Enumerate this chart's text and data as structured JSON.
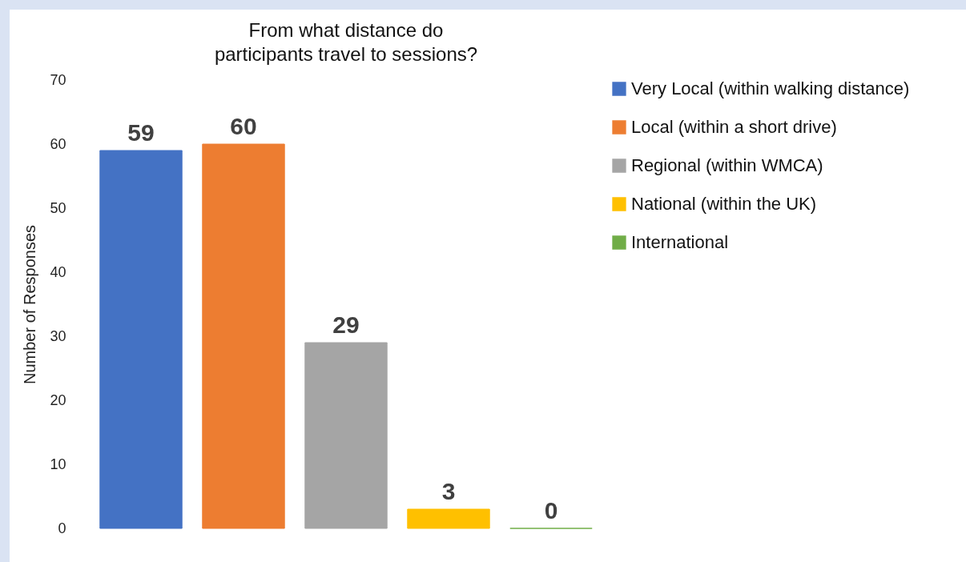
{
  "chart_data": {
    "type": "bar",
    "title": "From what distance do participants travel to sessions?",
    "ylabel": "Number of Responses",
    "categories": [
      null
    ],
    "series": [
      {
        "name": "Very Local (within walking distance)",
        "color": "#4472c4",
        "values": [
          59
        ]
      },
      {
        "name": "Local (within a short drive)",
        "color": "#ed7d31",
        "values": [
          60
        ]
      },
      {
        "name": "Regional (within WMCA)",
        "color": "#a5a5a5",
        "values": [
          29
        ]
      },
      {
        "name": "National (within the UK)",
        "color": "#ffc000",
        "values": [
          3
        ]
      },
      {
        "name": "International",
        "color": "#70ad47",
        "values": [
          0
        ]
      }
    ],
    "ylim": [
      0,
      70
    ],
    "yticks": [
      0,
      10,
      20,
      30,
      40,
      50,
      60,
      70
    ],
    "grid": false,
    "legend": "right",
    "data_labels": true,
    "tick_labels": "y"
  }
}
